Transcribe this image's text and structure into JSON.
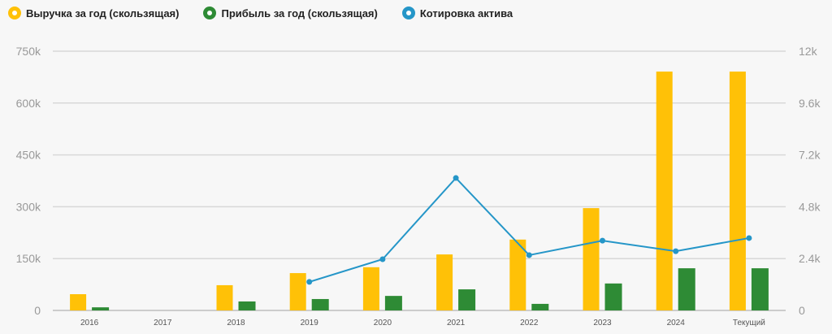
{
  "chart_data": {
    "type": "bar",
    "categories": [
      "2016",
      "2017",
      "2018",
      "2019",
      "2020",
      "2021",
      "2022",
      "2023",
      "2024",
      "Текущий"
    ],
    "series": [
      {
        "name": "Выручка за год (скользящая)",
        "axis": "left",
        "type": "bar",
        "color": "#ffc107",
        "values": [
          47,
          null,
          73,
          108,
          125,
          162,
          205,
          296,
          691,
          691
        ]
      },
      {
        "name": "Прибыль за год (скользящая)",
        "axis": "left",
        "type": "bar",
        "color": "#2e8b35",
        "values": [
          9,
          null,
          26,
          33,
          42,
          61,
          19,
          78,
          122,
          122
        ]
      },
      {
        "name": "Котировка актива",
        "axis": "right",
        "type": "line",
        "color": "#2596c8",
        "values": [
          null,
          null,
          null,
          1.32,
          2.37,
          6.13,
          2.56,
          3.23,
          2.74,
          3.35
        ]
      }
    ],
    "left_axis": {
      "ylim": [
        0,
        750
      ],
      "ticks": [
        "0",
        "150k",
        "300k",
        "450k",
        "600k",
        "750k"
      ]
    },
    "right_axis": {
      "ylim": [
        0,
        12
      ],
      "ticks": [
        "0",
        "2.4k",
        "4.8k",
        "7.2k",
        "9.6k",
        "12k"
      ]
    },
    "legend_position": "top-left",
    "grid": true
  }
}
